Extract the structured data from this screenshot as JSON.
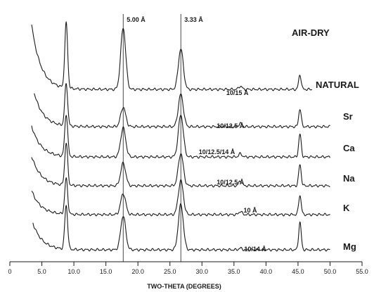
{
  "chart_data": {
    "type": "line",
    "title": "AIR-DRY",
    "xlabel": "TWO-THETA (DEGREES)",
    "ylabel": "",
    "xlim": [
      0,
      55
    ],
    "x_ticks": [
      "0",
      "5.0",
      "10.0",
      "15.0",
      "20.0",
      "25.0",
      "30.0",
      "35.0",
      "40.0",
      "45.0",
      "50.0",
      "55.0"
    ],
    "reference_lines": [
      {
        "label": "5.00 Å",
        "x": 17.7
      },
      {
        "label": "3.33 Å",
        "x": 26.7
      }
    ],
    "series": [
      {
        "name": "NATURAL",
        "spacing": "10/15 Å",
        "peaks": [
          {
            "x": 8.8,
            "height": 2.0
          },
          {
            "x": 17.7,
            "height": 1.9
          },
          {
            "x": 26.7,
            "height": 1.25
          },
          {
            "x": 36.0,
            "height": 0.1
          },
          {
            "x": 45.3,
            "height": 0.45
          }
        ]
      },
      {
        "name": "Sr",
        "spacing": "10/12.5 Å",
        "peaks": [
          {
            "x": 8.8,
            "height": 1.3
          },
          {
            "x": 17.7,
            "height": 0.6
          },
          {
            "x": 26.7,
            "height": 1.0
          },
          {
            "x": 36.0,
            "height": 0.1
          },
          {
            "x": 45.3,
            "height": 0.55
          }
        ]
      },
      {
        "name": "Ca",
        "spacing": "10/12.5/14 Å",
        "peaks": [
          {
            "x": 8.8,
            "height": 1.3
          },
          {
            "x": 17.7,
            "height": 0.9
          },
          {
            "x": 26.7,
            "height": 1.3
          },
          {
            "x": 36.0,
            "height": 0.1
          },
          {
            "x": 45.3,
            "height": 0.7
          }
        ]
      },
      {
        "name": "Na",
        "spacing": "10/12.5 Å",
        "peaks": [
          {
            "x": 8.8,
            "height": 1.3
          },
          {
            "x": 17.7,
            "height": 0.7
          },
          {
            "x": 26.7,
            "height": 1.0
          },
          {
            "x": 36.0,
            "height": 0.15
          },
          {
            "x": 45.3,
            "height": 0.65
          }
        ]
      },
      {
        "name": "K",
        "spacing": "10 Å",
        "peaks": [
          {
            "x": 8.8,
            "height": 1.1
          },
          {
            "x": 17.7,
            "height": 0.65
          },
          {
            "x": 26.7,
            "height": 1.05
          },
          {
            "x": 36.0,
            "height": 0.1
          },
          {
            "x": 45.3,
            "height": 0.6
          }
        ]
      },
      {
        "name": "Mg",
        "spacing": "10/14 Å",
        "peaks": [
          {
            "x": 8.8,
            "height": 1.35
          },
          {
            "x": 17.7,
            "height": 1.05
          },
          {
            "x": 26.7,
            "height": 1.4
          },
          {
            "x": 36.0,
            "height": 0.05
          },
          {
            "x": 45.3,
            "height": 0.85
          }
        ]
      }
    ],
    "grid": false,
    "legend": "none"
  }
}
